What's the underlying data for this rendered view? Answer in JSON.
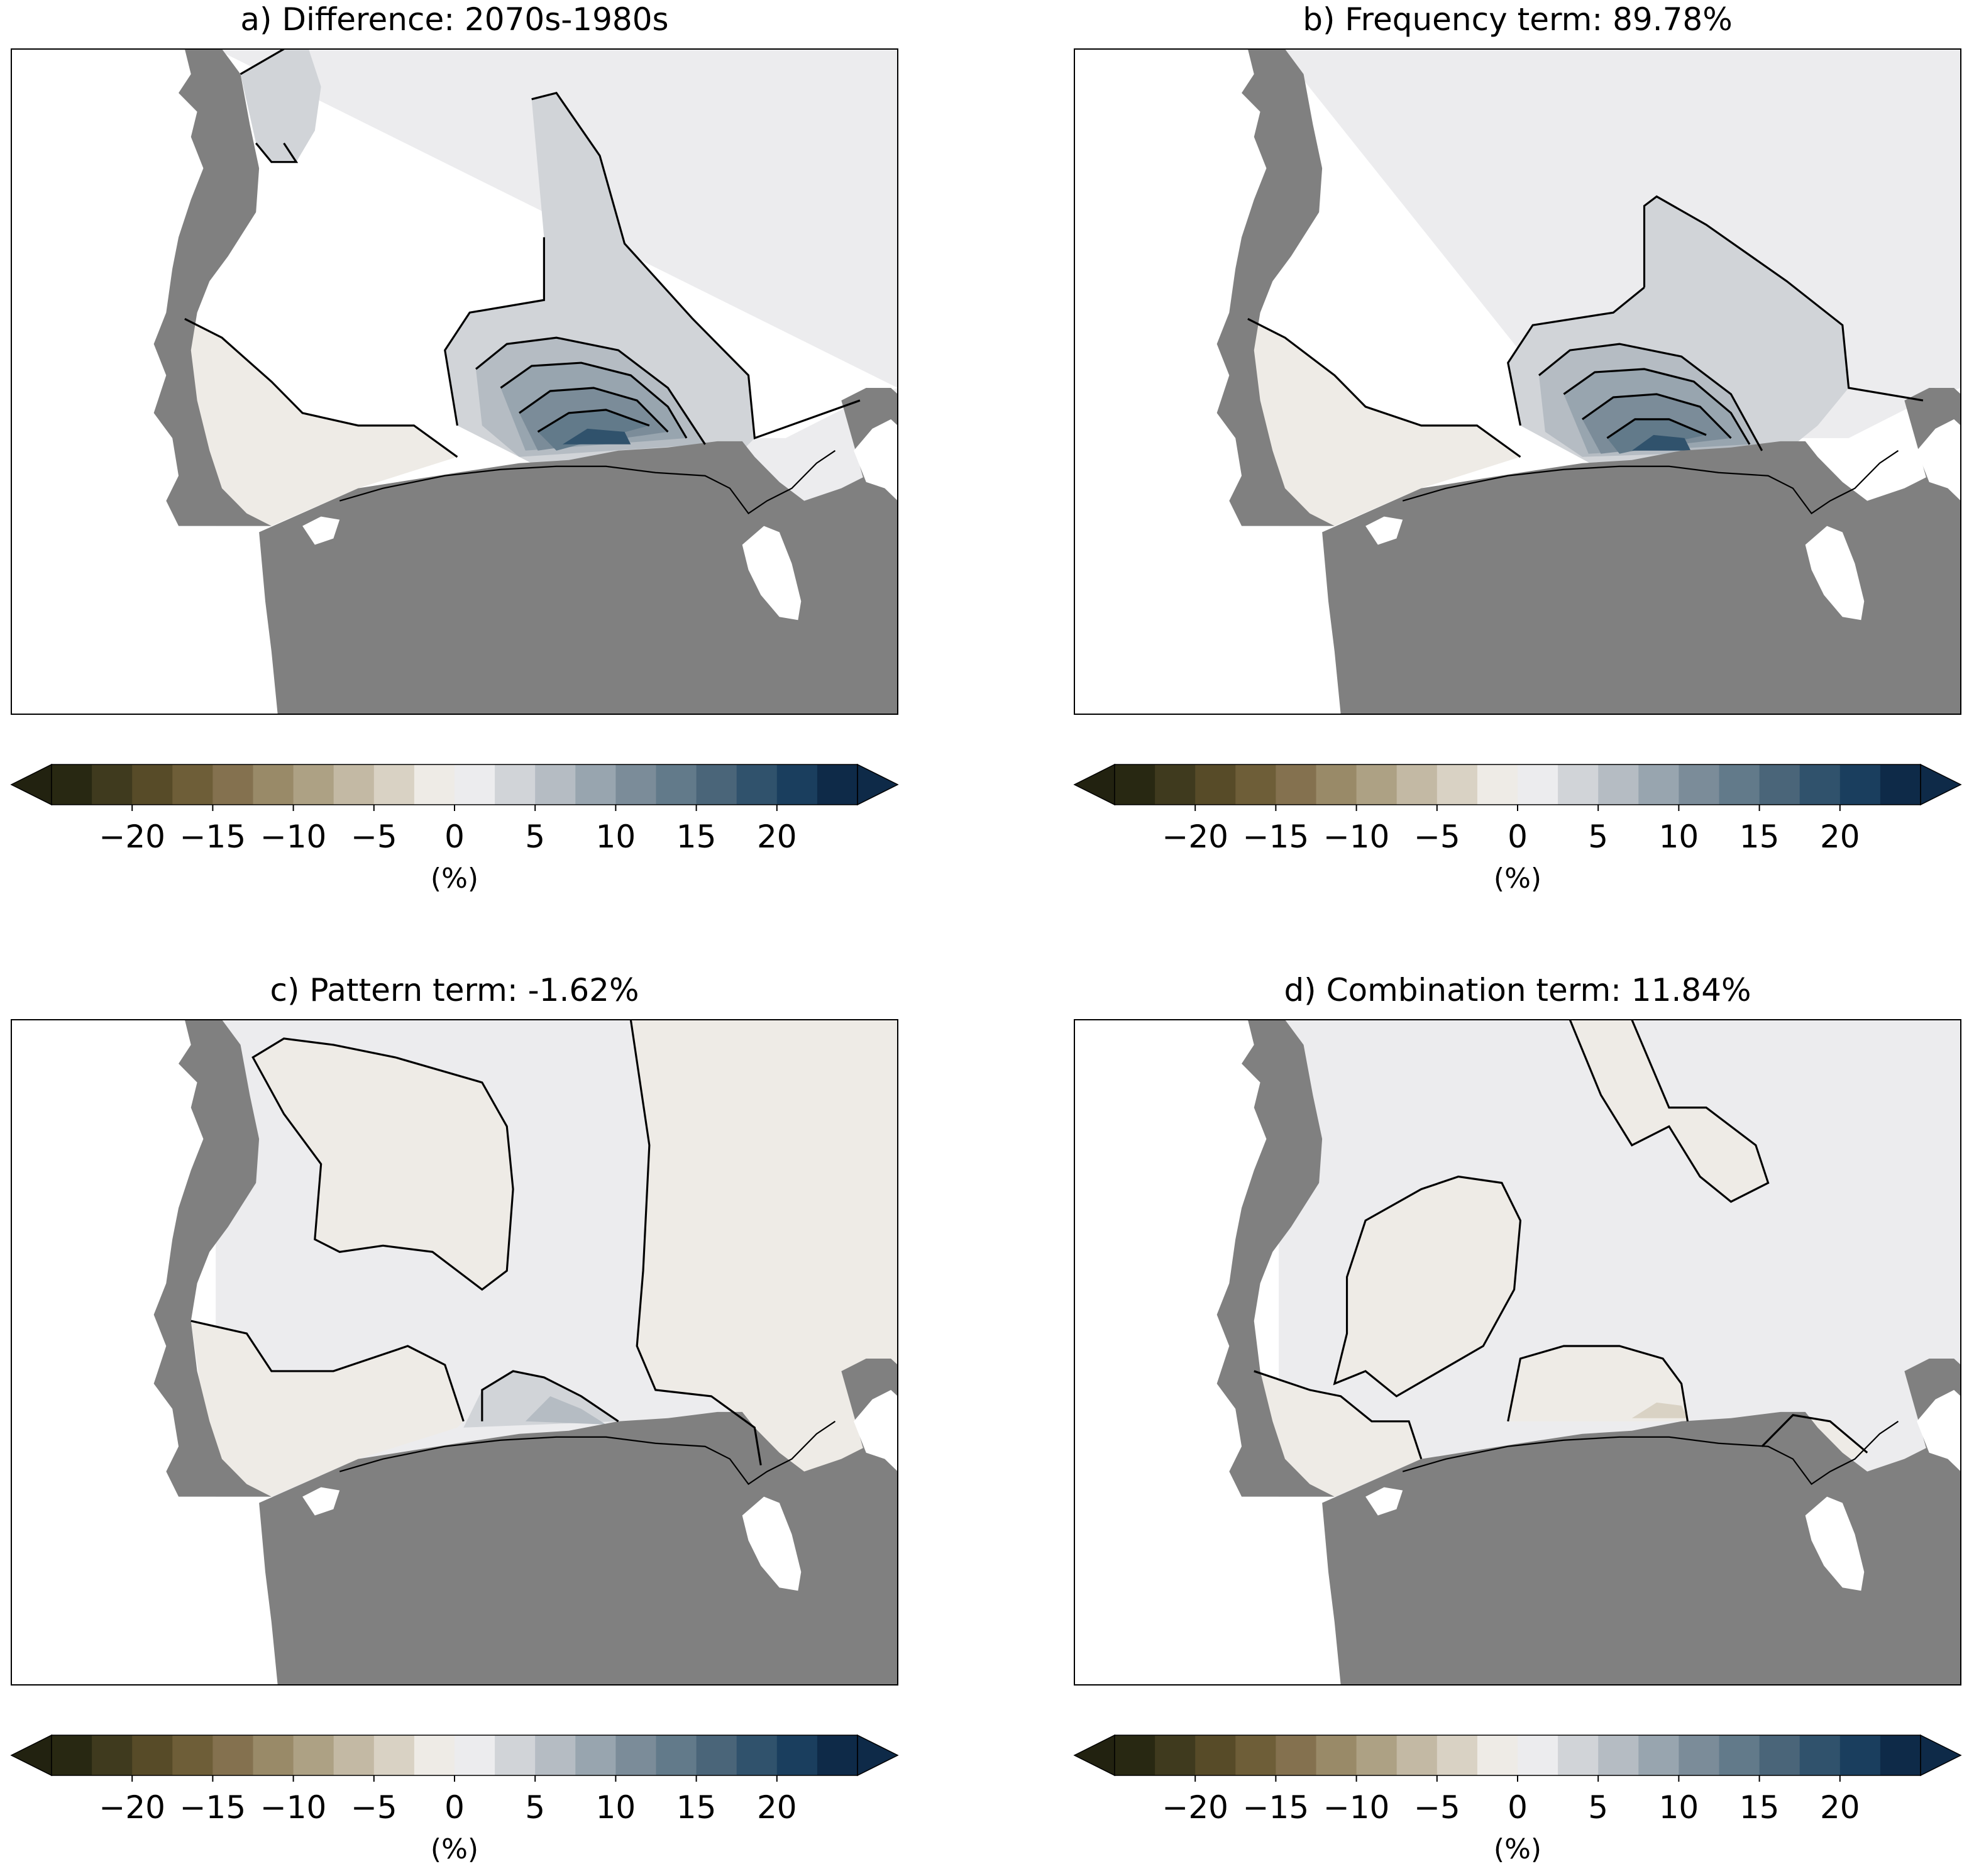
{
  "figure": {
    "panels": [
      {
        "id": "a",
        "title": "a) Difference: 2070s-1980s"
      },
      {
        "id": "b",
        "title": "b) Frequency term: 89.78%"
      },
      {
        "id": "c",
        "title": "c) Pattern term: -1.62%"
      },
      {
        "id": "d",
        "title": "d) Combination term: 11.84%"
      }
    ],
    "colorbar": {
      "unit_label": "(%)",
      "ticks": [
        "−20",
        "−15",
        "−10",
        "−5",
        "0",
        "5",
        "10",
        "15",
        "20"
      ],
      "tick_values": [
        -20,
        -15,
        -10,
        -5,
        0,
        5,
        10,
        15,
        20
      ],
      "range": [
        -25,
        25
      ],
      "extend": "both",
      "colors": [
        "#282812",
        "#3f3a1e",
        "#574b28",
        "#6e5e38",
        "#84714f",
        "#998a68",
        "#ada184",
        "#c3b9a4",
        "#d9d2c4",
        "#eeebe6",
        "#ececee",
        "#d1d4d8",
        "#b5bcc3",
        "#98a5af",
        "#7b8c99",
        "#627a8a",
        "#4a6579",
        "#30526c",
        "#1a3e5e",
        "#0e2a48"
      ],
      "under_color": "#222210",
      "over_color": "#0e2a48"
    },
    "land_color": "#808080",
    "background_color": "#ffffff"
  }
}
